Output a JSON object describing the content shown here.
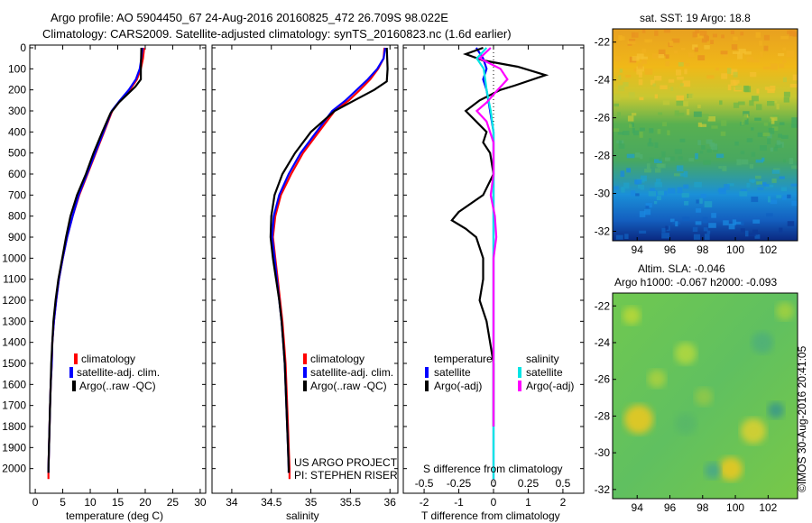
{
  "header": {
    "title_line1": "Argo profile: AO 5904450_67 24-Aug-2016 20160825_472 26.709S 98.022E",
    "title_line2": "Climatology: CARS2009. Satellite-adjusted climatology: synTS_20160823.nc (1.6d earlier)"
  },
  "side_text": "©IMOS 30-Aug-2016 20:41:05",
  "project_text": [
    "US ARGO PROJECT",
    "PI: STEPHEN RISER"
  ],
  "colors": {
    "climatology": "#ff0000",
    "satellite": "#0000ff",
    "argo": "#000000",
    "sat_salinity": "#00e5e5",
    "argo_salinity": "#ff00ff"
  },
  "chart_data": [
    {
      "type": "line",
      "name": "temperature",
      "xlabel": "temperature (deg C)",
      "ylabel": "",
      "xlim": [
        -1,
        31
      ],
      "ylim": [
        2100,
        0
      ],
      "xticks": [
        0,
        5,
        10,
        15,
        20,
        25,
        30
      ],
      "yticks": [
        0,
        100,
        200,
        300,
        400,
        500,
        600,
        700,
        800,
        900,
        1000,
        1100,
        1200,
        1300,
        1400,
        1500,
        1600,
        1700,
        1800,
        1900,
        2000
      ],
      "legend": [
        "climatology",
        "satellite-adj. clim.",
        "Argo(..raw -QC)"
      ],
      "legend_position": "lower-center",
      "series": [
        {
          "name": "climatology",
          "color": "#ff0000",
          "points": [
            [
              19.8,
              0
            ],
            [
              19.6,
              50
            ],
            [
              19.2,
              100
            ],
            [
              18.5,
              150
            ],
            [
              17.2,
              200
            ],
            [
              15.5,
              250
            ],
            [
              14.0,
              300
            ],
            [
              12.5,
              400
            ],
            [
              11.0,
              500
            ],
            [
              9.5,
              600
            ],
            [
              8.0,
              700
            ],
            [
              6.8,
              800
            ],
            [
              5.8,
              900
            ],
            [
              5.0,
              1000
            ],
            [
              4.3,
              1100
            ],
            [
              3.8,
              1200
            ],
            [
              3.4,
              1300
            ],
            [
              3.1,
              1400
            ],
            [
              3.0,
              1500
            ],
            [
              2.8,
              1600
            ],
            [
              2.7,
              1700
            ],
            [
              2.6,
              1800
            ],
            [
              2.5,
              1900
            ],
            [
              2.4,
              2000
            ],
            [
              2.4,
              2050
            ]
          ]
        },
        {
          "name": "satellite",
          "color": "#0000ff",
          "points": [
            [
              19.5,
              0
            ],
            [
              19.3,
              50
            ],
            [
              19.0,
              100
            ],
            [
              18.3,
              150
            ],
            [
              17.0,
              200
            ],
            [
              15.4,
              250
            ],
            [
              13.9,
              300
            ],
            [
              12.4,
              400
            ],
            [
              10.9,
              500
            ],
            [
              9.4,
              600
            ],
            [
              7.9,
              700
            ],
            [
              6.8,
              800
            ],
            [
              5.8,
              900
            ],
            [
              5.0,
              1000
            ],
            [
              4.3,
              1100
            ],
            [
              3.8,
              1200
            ],
            [
              3.4,
              1300
            ],
            [
              3.1,
              1400
            ],
            [
              3.0,
              1500
            ],
            [
              2.8,
              1600
            ],
            [
              2.7,
              1700
            ],
            [
              2.6,
              1800
            ],
            [
              2.5,
              1900
            ],
            [
              2.4,
              2000
            ],
            [
              2.4,
              2020
            ]
          ]
        },
        {
          "name": "Argo",
          "color": "#000000",
          "points": [
            [
              19.3,
              0
            ],
            [
              19.2,
              100
            ],
            [
              19.2,
              150
            ],
            [
              18.2,
              185
            ],
            [
              16.8,
              220
            ],
            [
              15.2,
              260
            ],
            [
              13.7,
              310
            ],
            [
              12.2,
              400
            ],
            [
              10.6,
              500
            ],
            [
              9.2,
              600
            ],
            [
              7.6,
              700
            ],
            [
              6.4,
              800
            ],
            [
              5.6,
              900
            ],
            [
              4.9,
              1000
            ],
            [
              4.2,
              1100
            ],
            [
              3.7,
              1200
            ],
            [
              3.3,
              1300
            ],
            [
              3.1,
              1400
            ],
            [
              2.9,
              1500
            ],
            [
              2.8,
              1600
            ],
            [
              2.7,
              1700
            ],
            [
              2.6,
              1800
            ],
            [
              2.5,
              1900
            ],
            [
              2.4,
              2000
            ],
            [
              2.4,
              2020
            ]
          ]
        }
      ]
    },
    {
      "type": "line",
      "name": "salinity",
      "xlabel": "salinity",
      "ylabel": "",
      "xlim": [
        33.75,
        36.1
      ],
      "ylim": [
        2100,
        0
      ],
      "xticks": [
        34,
        34.5,
        35,
        35.5,
        36
      ],
      "legend": [
        "climatology",
        "satellite-adj. clim.",
        "Argo(..raw -QC)"
      ],
      "legend_position": "lower-center",
      "series": [
        {
          "name": "climatology",
          "color": "#ff0000",
          "points": [
            [
              35.93,
              0
            ],
            [
              35.92,
              50
            ],
            [
              35.85,
              100
            ],
            [
              35.75,
              150
            ],
            [
              35.62,
              200
            ],
            [
              35.48,
              250
            ],
            [
              35.3,
              300
            ],
            [
              35.1,
              400
            ],
            [
              34.9,
              500
            ],
            [
              34.75,
              600
            ],
            [
              34.62,
              700
            ],
            [
              34.55,
              800
            ],
            [
              34.52,
              900
            ],
            [
              34.55,
              1000
            ],
            [
              34.58,
              1100
            ],
            [
              34.61,
              1200
            ],
            [
              34.64,
              1300
            ],
            [
              34.66,
              1400
            ],
            [
              34.68,
              1500
            ],
            [
              34.69,
              1600
            ],
            [
              34.7,
              1700
            ],
            [
              34.71,
              1800
            ],
            [
              34.72,
              1900
            ],
            [
              34.73,
              2000
            ],
            [
              34.73,
              2050
            ]
          ]
        },
        {
          "name": "satellite",
          "color": "#0000ff",
          "points": [
            [
              35.94,
              0
            ],
            [
              35.92,
              50
            ],
            [
              35.84,
              100
            ],
            [
              35.72,
              150
            ],
            [
              35.58,
              200
            ],
            [
              35.44,
              250
            ],
            [
              35.27,
              300
            ],
            [
              35.07,
              400
            ],
            [
              34.87,
              500
            ],
            [
              34.72,
              600
            ],
            [
              34.6,
              700
            ],
            [
              34.53,
              800
            ],
            [
              34.51,
              900
            ],
            [
              34.54,
              1000
            ],
            [
              34.57,
              1100
            ],
            [
              34.6,
              1200
            ],
            [
              34.63,
              1300
            ],
            [
              34.65,
              1400
            ],
            [
              34.67,
              1500
            ],
            [
              34.68,
              1600
            ],
            [
              34.69,
              1700
            ],
            [
              34.7,
              1800
            ],
            [
              34.71,
              1900
            ],
            [
              34.72,
              2000
            ],
            [
              34.72,
              2020
            ]
          ]
        },
        {
          "name": "Argo",
          "color": "#000000",
          "points": [
            [
              35.96,
              0
            ],
            [
              35.97,
              100
            ],
            [
              35.96,
              160
            ],
            [
              35.8,
              200
            ],
            [
              35.55,
              250
            ],
            [
              35.3,
              300
            ],
            [
              35.0,
              400
            ],
            [
              34.8,
              500
            ],
            [
              34.64,
              600
            ],
            [
              34.54,
              700
            ],
            [
              34.5,
              800
            ],
            [
              34.49,
              900
            ],
            [
              34.52,
              1000
            ],
            [
              34.56,
              1100
            ],
            [
              34.6,
              1200
            ],
            [
              34.63,
              1300
            ],
            [
              34.65,
              1400
            ],
            [
              34.67,
              1500
            ],
            [
              34.68,
              1600
            ],
            [
              34.69,
              1700
            ],
            [
              34.7,
              1800
            ],
            [
              34.71,
              1900
            ],
            [
              34.72,
              2000
            ],
            [
              34.72,
              2020
            ]
          ]
        }
      ]
    },
    {
      "type": "line",
      "name": "differences",
      "xlabel": "T difference from climatology",
      "xlabel2": "S difference from climatology",
      "ylabel": "",
      "xlim": [
        -2.6,
        2.6
      ],
      "xlim_s": [
        -0.65,
        0.65
      ],
      "ylim": [
        2100,
        0
      ],
      "xticks": [
        -2,
        -1,
        0,
        1,
        2
      ],
      "xticks_s": [
        -0.5,
        -0.25,
        0,
        0.25,
        0.5
      ],
      "legend_header_t": "temperature",
      "legend_header_s": "salinity",
      "legend": [
        "satellite",
        "Argo(-adj)",
        "satellite",
        "Argo(-adj)"
      ],
      "legend_position": "lower-center",
      "series": [
        {
          "name": "satellite",
          "color": "#0000ff",
          "points": [
            [
              -0.5,
              0
            ],
            [
              -0.3,
              50
            ],
            [
              -0.2,
              100
            ],
            [
              -0.3,
              150
            ],
            [
              -0.2,
              200
            ],
            [
              -0.1,
              300
            ],
            [
              0,
              400
            ],
            [
              0,
              600
            ],
            [
              0,
              800
            ],
            [
              0,
              1000
            ],
            [
              0,
              1500
            ],
            [
              0,
              2050
            ]
          ]
        },
        {
          "name": "Argo(-adj)",
          "color": "#000000",
          "points": [
            [
              -0.3,
              0
            ],
            [
              -0.8,
              30
            ],
            [
              -0.3,
              60
            ],
            [
              0.7,
              90
            ],
            [
              1.5,
              130
            ],
            [
              0.6,
              180
            ],
            [
              0.2,
              200
            ],
            [
              -0.4,
              250
            ],
            [
              -0.8,
              300
            ],
            [
              -0.5,
              350
            ],
            [
              -0.2,
              400
            ],
            [
              -0.3,
              450
            ],
            [
              -0.1,
              500
            ],
            [
              0,
              600
            ],
            [
              -0.3,
              700
            ],
            [
              -1.0,
              780
            ],
            [
              -1.2,
              820
            ],
            [
              -0.8,
              860
            ],
            [
              -0.5,
              900
            ],
            [
              -0.3,
              1000
            ],
            [
              -0.3,
              1100
            ],
            [
              -0.4,
              1200
            ],
            [
              -0.2,
              1300
            ],
            [
              -0.1,
              1400
            ],
            [
              0,
              1500
            ],
            [
              0,
              1700
            ],
            [
              0,
              1800
            ]
          ]
        },
        {
          "name": "satellite",
          "color": "#00e5e5",
          "points": [
            [
              -0.05,
              0
            ],
            [
              -0.12,
              50
            ],
            [
              -0.07,
              100
            ],
            [
              -0.05,
              200
            ],
            [
              -0.02,
              300
            ],
            [
              0,
              400
            ],
            [
              0,
              800
            ],
            [
              0,
              1200
            ],
            [
              0,
              2050
            ]
          ]
        },
        {
          "name": "Argo(-adj)",
          "color": "#ff00ff",
          "points": [
            [
              -0.02,
              0
            ],
            [
              -0.1,
              50
            ],
            [
              0.05,
              100
            ],
            [
              0.1,
              150
            ],
            [
              0.03,
              200
            ],
            [
              -0.05,
              260
            ],
            [
              -0.12,
              300
            ],
            [
              -0.05,
              350
            ],
            [
              0,
              450
            ],
            [
              0,
              600
            ],
            [
              -0.02,
              700
            ],
            [
              0.01,
              800
            ],
            [
              0.02,
              900
            ],
            [
              0,
              1000
            ],
            [
              0,
              1500
            ],
            [
              0,
              1800
            ]
          ]
        }
      ]
    },
    {
      "type": "heatmap",
      "name": "sst_map",
      "title": "sat. SST: 19 Argo: 18.8",
      "xlim": [
        92.5,
        103.8
      ],
      "ylim": [
        -32.5,
        -21.3
      ],
      "xticks": [
        94,
        96,
        98,
        100,
        102
      ],
      "yticks": [
        -22,
        -24,
        -26,
        -28,
        -30,
        -32
      ]
    },
    {
      "type": "heatmap",
      "name": "sla_map",
      "title": "Altim. SLA: -0.046",
      "subtitle": "Argo h1000: -0.067 h2000: -0.093",
      "xlim": [
        92.5,
        103.8
      ],
      "ylim": [
        -32.5,
        -21.3
      ],
      "xticks": [
        94,
        96,
        98,
        100,
        102
      ],
      "yticks": [
        -22,
        -24,
        -26,
        -28,
        -30,
        -32
      ]
    }
  ]
}
